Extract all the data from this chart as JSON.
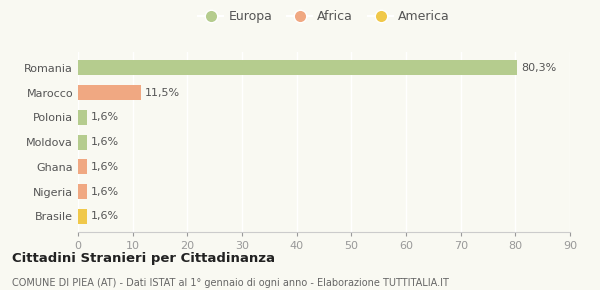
{
  "categories": [
    "Romania",
    "Marocco",
    "Polonia",
    "Moldova",
    "Ghana",
    "Nigeria",
    "Brasile"
  ],
  "values": [
    80.3,
    11.5,
    1.6,
    1.6,
    1.6,
    1.6,
    1.6
  ],
  "labels": [
    "80,3%",
    "11,5%",
    "1,6%",
    "1,6%",
    "1,6%",
    "1,6%",
    "1,6%"
  ],
  "colors": [
    "#b5cc8e",
    "#f0a882",
    "#b5cc8e",
    "#b5cc8e",
    "#f0a882",
    "#f0a882",
    "#f0c84a"
  ],
  "legend": [
    {
      "label": "Europa",
      "color": "#b5cc8e"
    },
    {
      "label": "Africa",
      "color": "#f0a882"
    },
    {
      "label": "America",
      "color": "#f0c84a"
    }
  ],
  "xlim": [
    0,
    90
  ],
  "xticks": [
    0,
    10,
    20,
    30,
    40,
    50,
    60,
    70,
    80,
    90
  ],
  "title": "Cittadini Stranieri per Cittadinanza",
  "subtitle": "COMUNE DI PIEA (AT) - Dati ISTAT al 1° gennaio di ogni anno - Elaborazione TUTTITALIA.IT",
  "background_color": "#f9f9f2",
  "grid_color": "#ffffff",
  "bar_height": 0.6
}
